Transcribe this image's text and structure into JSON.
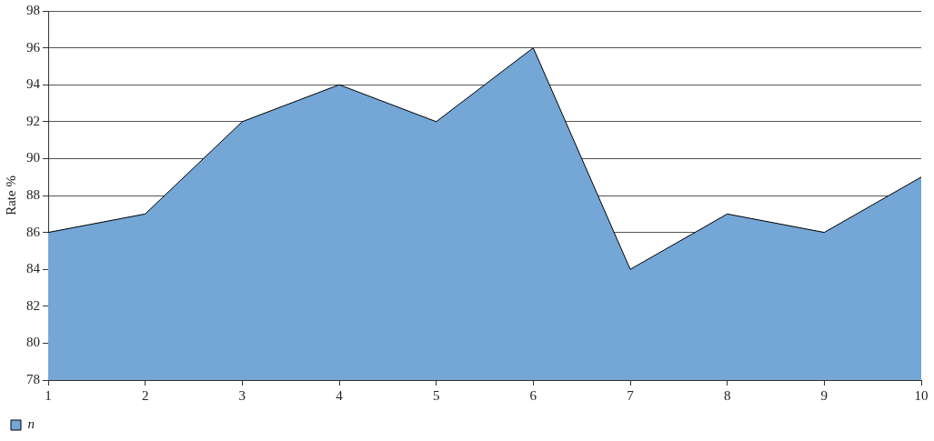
{
  "chart_data": {
    "type": "area",
    "ylabel": "Rate %",
    "x": [
      1,
      2,
      3,
      4,
      5,
      6,
      7,
      8,
      9,
      10
    ],
    "series": [
      {
        "name": "n",
        "color": "#74a6d6",
        "values": [
          86,
          87,
          92,
          94,
          92,
          96,
          84,
          87,
          86,
          89
        ]
      }
    ],
    "xlim": [
      1,
      10
    ],
    "xticks": [
      1,
      2,
      3,
      4,
      5,
      6,
      7,
      8,
      9,
      10
    ],
    "ylim": [
      78,
      98
    ],
    "yticks": [
      78,
      80,
      82,
      84,
      86,
      88,
      90,
      92,
      94,
      96,
      98
    ],
    "grid": "y",
    "legend": "bottom left",
    "marker": "none"
  }
}
